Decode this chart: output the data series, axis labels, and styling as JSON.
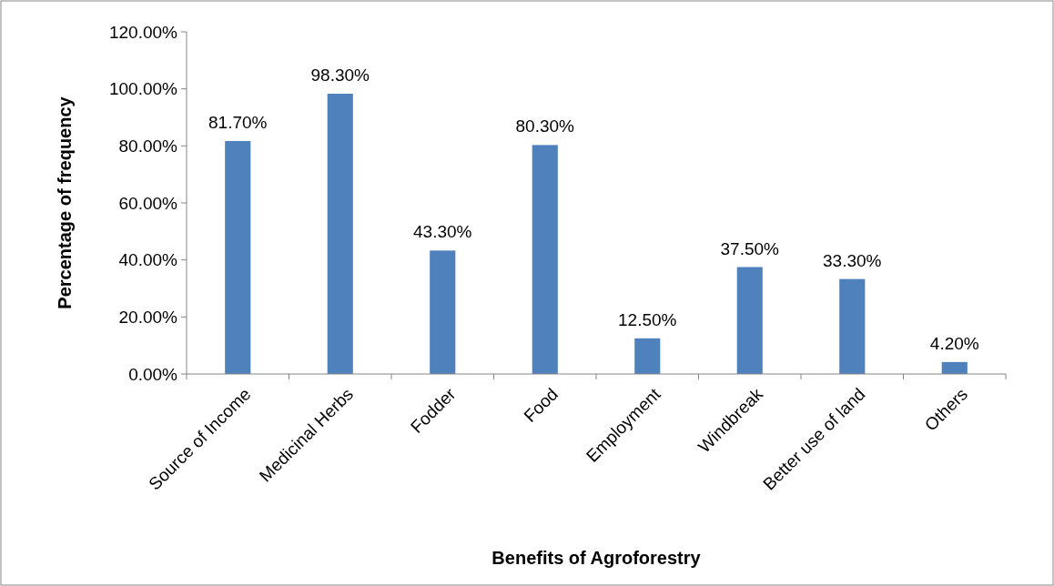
{
  "chart_data": {
    "type": "bar",
    "xlabel": "Benefits of Agroforestry",
    "ylabel": "Percentage of frequency",
    "categories": [
      "Source of Income",
      "Medicinal Herbs",
      "Fodder",
      "Food",
      "Employment",
      "Windbreak",
      "Better use of land",
      "Others"
    ],
    "values": [
      81.7,
      98.3,
      43.3,
      80.3,
      12.5,
      37.5,
      33.3,
      4.2
    ],
    "value_labels": [
      "81.70%",
      "98.30%",
      "43.30%",
      "80.30%",
      "12.50%",
      "37.50%",
      "33.30%",
      "4.20%"
    ],
    "color": "#4f81bd",
    "ylim": [
      0,
      120
    ],
    "yticks": [
      {
        "value": 0,
        "label": "0.00%"
      },
      {
        "value": 20,
        "label": "20.00%"
      },
      {
        "value": 40,
        "label": "40.00%"
      },
      {
        "value": 60,
        "label": "60.00%"
      },
      {
        "value": 80,
        "label": "80.00%"
      },
      {
        "value": 100,
        "label": "100.00%"
      },
      {
        "value": 120,
        "label": "120.00%"
      }
    ],
    "grid": false
  }
}
